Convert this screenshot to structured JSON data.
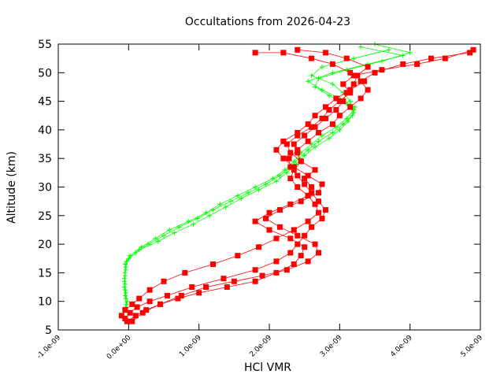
{
  "chart_data": {
    "type": "line",
    "title": "Occultations from 2026-04-23",
    "xlabel": "HCl VMR",
    "ylabel": "Altitude (km)",
    "xlim": [
      -1e-09,
      5e-09
    ],
    "ylim": [
      5,
      55
    ],
    "xticks": [
      -1e-09,
      0,
      1e-09,
      2e-09,
      3e-09,
      4e-09,
      5e-09
    ],
    "xtick_labels": [
      "-1.0e-09",
      "0.0e+00",
      "1.0e-09",
      "2.0e-09",
      "3.0e-09",
      "4.0e-09",
      "5.0e-09"
    ],
    "yticks": [
      5,
      10,
      15,
      20,
      25,
      30,
      35,
      40,
      45,
      50,
      55
    ],
    "ytick_labels": [
      "5",
      "10",
      "15",
      "20",
      "25",
      "30",
      "35",
      "40",
      "45",
      "50",
      "55"
    ],
    "grid": false,
    "legend": "none",
    "series": [
      {
        "color": "#00ff00",
        "marker": "plus",
        "style": "line-with-markers",
        "profiles": [
          [
            [
              -4e-11,
              9
            ],
            [
              -4e-11,
              10.5
            ],
            [
              -5e-11,
              12
            ],
            [
              -6e-11,
              13.5
            ],
            [
              -5e-11,
              15
            ],
            [
              -5e-11,
              16.5
            ],
            [
              2e-11,
              18
            ],
            [
              1.8e-10,
              19.5
            ],
            [
              3.8e-10,
              21
            ],
            [
              5.8e-10,
              22.5
            ],
            [
              8.5e-10,
              24
            ],
            [
              1.1e-09,
              25.5
            ],
            [
              1.3e-09,
              27
            ],
            [
              1.55e-09,
              28.5
            ],
            [
              1.8e-09,
              30
            ],
            [
              2.05e-09,
              31.5
            ],
            [
              2.22e-09,
              33
            ],
            [
              2.35e-09,
              34.5
            ],
            [
              2.45e-09,
              36
            ],
            [
              2.6e-09,
              37.5
            ],
            [
              2.75e-09,
              39
            ],
            [
              2.95e-09,
              40.5
            ],
            [
              3.1e-09,
              42
            ],
            [
              3.2e-09,
              43.5
            ],
            [
              3.15e-09,
              45
            ],
            [
              3.05e-09,
              46.5
            ],
            [
              2.9e-09,
              48
            ],
            [
              2.6e-09,
              49.5
            ],
            [
              2.75e-09,
              51
            ],
            [
              3.2e-09,
              52.5
            ],
            [
              3.7e-09,
              54
            ]
          ],
          [
            [
              -3e-11,
              9.5
            ],
            [
              -5e-11,
              11
            ],
            [
              -6e-11,
              12.5
            ],
            [
              -6e-11,
              14
            ],
            [
              -4e-11,
              15.5
            ],
            [
              -3e-11,
              17
            ],
            [
              1e-10,
              18.5
            ],
            [
              2.8e-10,
              20
            ],
            [
              5e-10,
              21.5
            ],
            [
              7.2e-10,
              23
            ],
            [
              9.8e-10,
              24.5
            ],
            [
              1.2e-09,
              26
            ],
            [
              1.45e-09,
              27.5
            ],
            [
              1.7e-09,
              29
            ],
            [
              1.95e-09,
              30.5
            ],
            [
              2.15e-09,
              32
            ],
            [
              2.3e-09,
              33.5
            ],
            [
              2.42e-09,
              35
            ],
            [
              2.55e-09,
              36.5
            ],
            [
              2.7e-09,
              38
            ],
            [
              2.9e-09,
              39.5
            ],
            [
              3.05e-09,
              41
            ],
            [
              3.18e-09,
              42.5
            ],
            [
              3.22e-09,
              44
            ],
            [
              3e-09,
              45.5
            ],
            [
              2.75e-09,
              47
            ],
            [
              2.55e-09,
              48.5
            ],
            [
              2.9e-09,
              50
            ],
            [
              3.4e-09,
              51.5
            ],
            [
              3.9e-09,
              53
            ],
            [
              3.3e-09,
              54.5
            ]
          ],
          [
            [
              -2e-11,
              10
            ],
            [
              -4e-11,
              11.5
            ],
            [
              -5e-11,
              13
            ],
            [
              -5e-11,
              14.5
            ],
            [
              -4e-11,
              16
            ],
            [
              0.0,
              17.5
            ],
            [
              1.5e-10,
              19
            ],
            [
              4.2e-10,
              20.5
            ],
            [
              6.5e-10,
              22
            ],
            [
              9.2e-10,
              23.5
            ],
            [
              1.15e-09,
              25
            ],
            [
              1.38e-09,
              26.5
            ],
            [
              1.6e-09,
              28
            ],
            [
              1.85e-09,
              29.5
            ],
            [
              2.1e-09,
              31
            ],
            [
              2.25e-09,
              32.5
            ],
            [
              2.38e-09,
              34
            ],
            [
              2.5e-09,
              35.5
            ],
            [
              2.65e-09,
              37
            ],
            [
              2.85e-09,
              38.5
            ],
            [
              3e-09,
              40
            ],
            [
              3.12e-09,
              41.5
            ],
            [
              3.2e-09,
              43
            ],
            [
              3.1e-09,
              44.5
            ],
            [
              2.85e-09,
              46
            ],
            [
              2.65e-09,
              47.5
            ],
            [
              2.7e-09,
              49
            ],
            [
              3.1e-09,
              50.5
            ],
            [
              3.6e-09,
              52
            ],
            [
              4e-09,
              53.5
            ],
            [
              3.5e-09,
              55
            ]
          ]
        ]
      },
      {
        "color": "#ff0000",
        "marker": "filled-square",
        "style": "line-with-markers",
        "profiles": [
          [
            [
              -1e-10,
              7.5
            ],
            [
              -5e-11,
              8.5
            ],
            [
              5e-11,
              9.5
            ],
            [
              1.5e-10,
              10.5
            ],
            [
              3e-10,
              12
            ],
            [
              5e-10,
              13.5
            ],
            [
              8e-10,
              15
            ],
            [
              1.2e-09,
              16.5
            ],
            [
              1.55e-09,
              18
            ],
            [
              1.85e-09,
              19.5
            ],
            [
              2.1e-09,
              21
            ],
            [
              2.35e-09,
              22.5
            ],
            [
              2.55e-09,
              24
            ],
            [
              2.7e-09,
              25.5
            ],
            [
              2.65e-09,
              27
            ],
            [
              2.55e-09,
              28.5
            ],
            [
              2.4e-09,
              30
            ],
            [
              2.3e-09,
              31.5
            ],
            [
              2.35e-09,
              33
            ],
            [
              2.45e-09,
              34.5
            ],
            [
              2.4e-09,
              36
            ],
            [
              2.35e-09,
              37.5
            ],
            [
              2.5e-09,
              39
            ],
            [
              2.65e-09,
              40.5
            ],
            [
              2.8e-09,
              42
            ],
            [
              2.95e-09,
              43.5
            ],
            [
              3.05e-09,
              45
            ],
            [
              3.1e-09,
              46.5
            ],
            [
              3.2e-09,
              48
            ],
            [
              3.25e-09,
              49.5
            ],
            [
              3.4e-09,
              51
            ],
            [
              3.1e-09,
              52.5
            ],
            [
              2.8e-09,
              53.5
            ],
            [
              2.4e-09,
              54
            ]
          ],
          [
            [
              -5e-11,
              7
            ],
            [
              2e-11,
              8
            ],
            [
              1.2e-10,
              9
            ],
            [
              3e-10,
              10
            ],
            [
              5.5e-10,
              11
            ],
            [
              9e-10,
              12.5
            ],
            [
              1.35e-09,
              14
            ],
            [
              1.8e-09,
              15.5
            ],
            [
              2.1e-09,
              17
            ],
            [
              2.3e-09,
              18.5
            ],
            [
              2.4e-09,
              20
            ],
            [
              2.5e-09,
              21.5
            ],
            [
              2.6e-09,
              23
            ],
            [
              2.75e-09,
              24.5
            ],
            [
              2.8e-09,
              26
            ],
            [
              2.7e-09,
              27.5
            ],
            [
              2.6e-09,
              29
            ],
            [
              2.5e-09,
              30.5
            ],
            [
              2.4e-09,
              32
            ],
            [
              2.3e-09,
              33.5
            ],
            [
              2.28e-09,
              35
            ],
            [
              2.4e-09,
              36.5
            ],
            [
              2.55e-09,
              38
            ],
            [
              2.7e-09,
              39.5
            ],
            [
              2.9e-09,
              41
            ],
            [
              3e-09,
              42.5
            ],
            [
              3.15e-09,
              44
            ],
            [
              3.3e-09,
              45.5
            ],
            [
              3.4e-09,
              47
            ],
            [
              3.3e-09,
              48.5
            ],
            [
              3.5e-09,
              50
            ],
            [
              3.9e-09,
              51.5
            ],
            [
              4.3e-09,
              52.5
            ],
            [
              4.85e-09,
              53.5
            ]
          ],
          [
            [
              -2e-11,
              6.5
            ],
            [
              1e-10,
              7.5
            ],
            [
              2.5e-10,
              8.5
            ],
            [
              4.5e-10,
              9.5
            ],
            [
              7e-10,
              10.5
            ],
            [
              1e-09,
              11.5
            ],
            [
              1.4e-09,
              12.5
            ],
            [
              1.8e-09,
              13.5
            ],
            [
              2.1e-09,
              15
            ],
            [
              2.35e-09,
              16.5
            ],
            [
              2.45e-09,
              18
            ],
            [
              2.5e-09,
              19.5
            ],
            [
              2.3e-09,
              21
            ],
            [
              2e-09,
              22.5
            ],
            [
              1.8e-09,
              24
            ],
            [
              2e-09,
              25.5
            ],
            [
              2.3e-09,
              27
            ],
            [
              2.55e-09,
              28.5
            ],
            [
              2.6e-09,
              30
            ],
            [
              2.5e-09,
              31.5
            ],
            [
              2.65e-09,
              33
            ],
            [
              2.45e-09,
              34.5
            ],
            [
              2.3e-09,
              36
            ],
            [
              2.25e-09,
              37.5
            ],
            [
              2.4e-09,
              39
            ],
            [
              2.6e-09,
              40.5
            ],
            [
              2.75e-09,
              42
            ],
            [
              2.85e-09,
              43.5
            ],
            [
              3e-09,
              45
            ],
            [
              3.15e-09,
              46.5
            ],
            [
              3.05e-09,
              48
            ],
            [
              3.2e-09,
              49.5
            ],
            [
              3.6e-09,
              50.5
            ],
            [
              4.1e-09,
              51.5
            ],
            [
              4.5e-09,
              52.5
            ],
            [
              4.9e-09,
              54
            ]
          ],
          [
            [
              5e-11,
              6.5
            ],
            [
              2e-10,
              8
            ],
            [
              4.5e-10,
              9.5
            ],
            [
              7.5e-10,
              11
            ],
            [
              1.1e-09,
              12.5
            ],
            [
              1.5e-09,
              13.5
            ],
            [
              1.9e-09,
              14.5
            ],
            [
              2.25e-09,
              15.5
            ],
            [
              2.55e-09,
              17
            ],
            [
              2.7e-09,
              18.5
            ],
            [
              2.65e-09,
              20
            ],
            [
              2.4e-09,
              21.5
            ],
            [
              2.15e-09,
              23
            ],
            [
              1.95e-09,
              24.5
            ],
            [
              2.15e-09,
              26
            ],
            [
              2.45e-09,
              27.5
            ],
            [
              2.7e-09,
              29
            ],
            [
              2.75e-09,
              30.5
            ],
            [
              2.55e-09,
              32
            ],
            [
              2.35e-09,
              33.5
            ],
            [
              2.2e-09,
              35
            ],
            [
              2.1e-09,
              36.5
            ],
            [
              2.2e-09,
              38
            ],
            [
              2.4e-09,
              39.5
            ],
            [
              2.55e-09,
              41
            ],
            [
              2.65e-09,
              42.5
            ],
            [
              2.8e-09,
              44
            ],
            [
              2.95e-09,
              45.5
            ],
            [
              3.15e-09,
              47
            ],
            [
              3.35e-09,
              48.5
            ],
            [
              3.15e-09,
              50
            ],
            [
              2.9e-09,
              51.5
            ],
            [
              2.6e-09,
              52.5
            ],
            [
              2.2e-09,
              53.5
            ],
            [
              1.8e-09,
              53.5
            ]
          ]
        ]
      }
    ]
  }
}
